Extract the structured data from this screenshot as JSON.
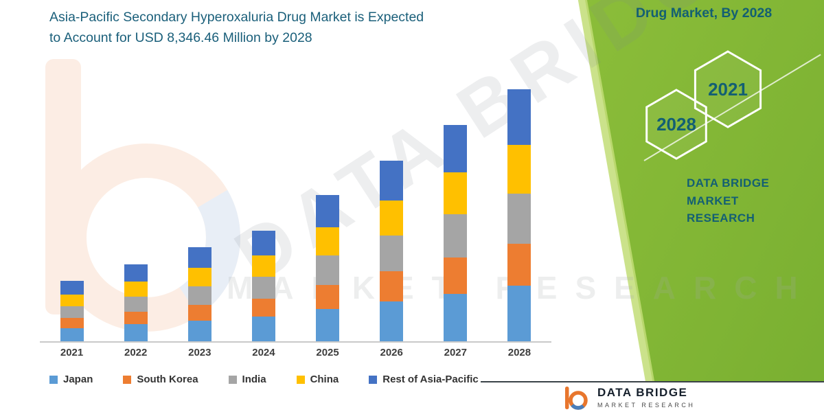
{
  "page": {
    "title_line1": "Asia-Pacific Secondary Hyperoxaluria Drug Market is Expected",
    "title_line2": "to Account for USD 8,346.46 Million by 2028"
  },
  "side_panel": {
    "heading": "Drug Market, By 2028",
    "hexagons": [
      "2028",
      "2021"
    ],
    "brand_line1": "DATA BRIDGE MARKET",
    "brand_line2": "RESEARCH"
  },
  "footer": {
    "brand": "DATA BRIDGE",
    "brand_sub": "MARKET RESEARCH"
  },
  "watermark": {
    "brand": "DATA BRIDGE",
    "sub": "MARKET RESEARCH"
  },
  "colors": {
    "title_text": "#1a5f7a",
    "panel_green_light": "#a9d147",
    "panel_green_dark": "#79af31",
    "axis_line": "#c9c9c9"
  },
  "chart_data": {
    "type": "bar",
    "stacked": true,
    "title": "Asia-Pacific Secondary Hyperoxaluria Drug Market is Expected to Account for USD 8,346.46 Million by 2028",
    "unit": "USD Million",
    "categories": [
      "2021",
      "2022",
      "2023",
      "2024",
      "2025",
      "2026",
      "2027",
      "2028"
    ],
    "series": [
      {
        "name": "Japan",
        "color": "#5B9BD5",
        "values": [
          440,
          560,
          690,
          810,
          1070,
          1320,
          1580,
          1840
        ]
      },
      {
        "name": "South Korea",
        "color": "#ED7D31",
        "values": [
          330,
          420,
          515,
          605,
          800,
          990,
          1185,
          1380
        ]
      },
      {
        "name": "India",
        "color": "#A5A5A5",
        "values": [
          400,
          510,
          625,
          735,
          970,
          1200,
          1440,
          1670
        ]
      },
      {
        "name": "China",
        "color": "#FFC000",
        "values": [
          385,
          490,
          600,
          705,
          930,
          1150,
          1380,
          1610
        ]
      },
      {
        "name": "Rest of Asia-Pacific",
        "color": "#4472C4",
        "values": [
          440,
          565,
          690,
          815,
          1070,
          1325,
          1590,
          1846.46
        ]
      }
    ],
    "totals": [
      1995,
      2545,
      3120,
      3670,
      4840,
      5985,
      7175,
      8346.46
    ],
    "ylim": [
      0,
      9300
    ],
    "xlabel": "",
    "ylabel": "",
    "gridlines": false,
    "legend_position": "bottom",
    "annotation_total_2028": "USD 8,346.46 Million by 2028"
  }
}
